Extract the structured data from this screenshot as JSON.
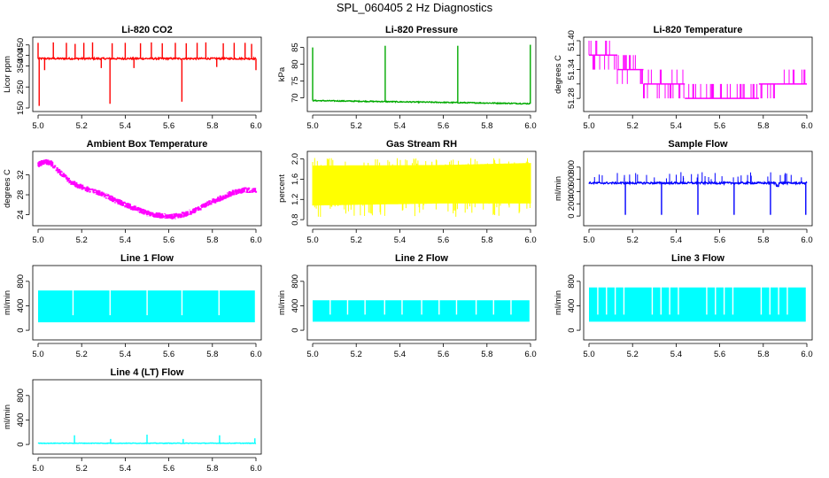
{
  "page": {
    "title": "SPL_060405  2 Hz Diagnostics"
  },
  "chart_data": [
    {
      "id": "co2",
      "type": "line",
      "title": "Li-820 CO2",
      "ylabel": "Licor ppm",
      "color": "#ff0000",
      "xlim": [
        5.0,
        6.0
      ],
      "ylim": [
        150,
        470
      ],
      "xticks": [
        "5.0",
        "5.2",
        "5.4",
        "5.6",
        "5.8",
        "6.0"
      ],
      "yticks": [
        150,
        250,
        350,
        400,
        450
      ],
      "baseline": 385,
      "noise": 4,
      "spikes": [
        {
          "x": 5.0,
          "to": 460
        },
        {
          "x": 5.005,
          "to": 160
        },
        {
          "x": 5.03,
          "to": 330
        },
        {
          "x": 5.07,
          "to": 462
        },
        {
          "x": 5.13,
          "to": 460
        },
        {
          "x": 5.17,
          "to": 455
        },
        {
          "x": 5.21,
          "to": 460
        },
        {
          "x": 5.25,
          "to": 462
        },
        {
          "x": 5.29,
          "to": 340
        },
        {
          "x": 5.33,
          "to": 170
        },
        {
          "x": 5.34,
          "to": 458
        },
        {
          "x": 5.4,
          "to": 460
        },
        {
          "x": 5.44,
          "to": 340
        },
        {
          "x": 5.47,
          "to": 458
        },
        {
          "x": 5.52,
          "to": 462
        },
        {
          "x": 5.57,
          "to": 458
        },
        {
          "x": 5.63,
          "to": 460
        },
        {
          "x": 5.66,
          "to": 180
        },
        {
          "x": 5.68,
          "to": 458
        },
        {
          "x": 5.73,
          "to": 460
        },
        {
          "x": 5.77,
          "to": 462
        },
        {
          "x": 5.82,
          "to": 345
        },
        {
          "x": 5.85,
          "to": 458
        },
        {
          "x": 5.9,
          "to": 460
        },
        {
          "x": 5.95,
          "to": 460
        },
        {
          "x": 5.98,
          "to": 455
        },
        {
          "x": 6.0,
          "to": 330
        }
      ]
    },
    {
      "id": "pressure",
      "type": "line",
      "title": "Li-820 Pressure",
      "ylabel": "kPa",
      "color": "#00aa00",
      "xlim": [
        5.0,
        6.0
      ],
      "ylim": [
        67,
        87
      ],
      "xticks": [
        "5.0",
        "5.2",
        "5.4",
        "5.6",
        "5.8",
        "6.0"
      ],
      "yticks": [
        70,
        75,
        80,
        85
      ],
      "start": 69.2,
      "end": 68.3,
      "noise": 0.15,
      "spikes": [
        {
          "x": 5.0,
          "to": 85
        },
        {
          "x": 5.333,
          "to": 85.5
        },
        {
          "x": 5.666,
          "to": 85.5
        },
        {
          "x": 5.999,
          "to": 85.8
        }
      ]
    },
    {
      "id": "licor-temp",
      "type": "step",
      "title": "Li-820 Temperature",
      "ylabel": "degrees C",
      "color": "#ff00ff",
      "xlim": [
        5.0,
        6.0
      ],
      "ylim": [
        51.26,
        51.4
      ],
      "xticks": [
        "5.0",
        "5.2",
        "5.4",
        "5.6",
        "5.8",
        "6.0"
      ],
      "yticks": [
        "51.28",
        "51.34",
        "51.40"
      ],
      "yticks_extra": [
        "51.31",
        "51.37"
      ],
      "levels": [
        {
          "from": 5.0,
          "to": 5.13,
          "y": 51.37,
          "alt": [
            51.4,
            51.34
          ]
        },
        {
          "from": 5.13,
          "to": 5.25,
          "y": 51.34,
          "alt": [
            51.37,
            51.31
          ]
        },
        {
          "from": 5.25,
          "to": 5.44,
          "y": 51.31,
          "alt": [
            51.34,
            51.28
          ]
        },
        {
          "from": 5.44,
          "to": 5.78,
          "y": 51.28,
          "alt": [
            51.31,
            51.28
          ]
        },
        {
          "from": 5.78,
          "to": 5.86,
          "y": 51.31,
          "alt": [
            51.28,
            51.31
          ]
        },
        {
          "from": 5.86,
          "to": 6.0,
          "y": 51.31,
          "alt": [
            51.34,
            51.31
          ]
        }
      ]
    },
    {
      "id": "ambient-temp",
      "type": "line",
      "title": "Ambient Box Temperature",
      "ylabel": "degrees C",
      "color": "#ff00ff",
      "xlim": [
        5.0,
        6.0
      ],
      "ylim": [
        22.5,
        36
      ],
      "xticks": [
        "5.0",
        "5.2",
        "5.4",
        "5.6",
        "5.8",
        "6.0"
      ],
      "yticks": [
        24,
        28,
        32
      ],
      "band": 0.6,
      "points": [
        [
          5.0,
          34.0
        ],
        [
          5.03,
          34.7
        ],
        [
          5.06,
          34.3
        ],
        [
          5.1,
          32.5
        ],
        [
          5.15,
          30.5
        ],
        [
          5.2,
          29.5
        ],
        [
          5.3,
          28.0
        ],
        [
          5.4,
          26.0
        ],
        [
          5.5,
          24.3
        ],
        [
          5.55,
          23.9
        ],
        [
          5.6,
          23.6
        ],
        [
          5.65,
          23.8
        ],
        [
          5.7,
          24.5
        ],
        [
          5.8,
          26.6
        ],
        [
          5.9,
          28.5
        ],
        [
          5.95,
          29.0
        ],
        [
          6.0,
          28.8
        ]
      ]
    },
    {
      "id": "gas-rh",
      "type": "band",
      "title": "Gas Stream RH",
      "ylabel": "percent",
      "color": "#ffff00",
      "xlim": [
        5.0,
        6.0
      ],
      "ylim": [
        0.75,
        2.08
      ],
      "xticks": [
        "5.0",
        "5.2",
        "5.4",
        "5.6",
        "5.8",
        "6.0"
      ],
      "yticks": [
        "0.8",
        "1.2",
        "1.6",
        "2.0"
      ],
      "upper": [
        [
          5.0,
          1.87
        ],
        [
          5.6,
          1.88
        ],
        [
          6.0,
          1.92
        ]
      ],
      "lower": [
        [
          5.0,
          1.08
        ],
        [
          5.6,
          1.12
        ],
        [
          6.0,
          1.12
        ]
      ],
      "min": 0.85,
      "max": 2.02
    },
    {
      "id": "sample-flow",
      "type": "line",
      "title": "Sample Flow",
      "ylabel": "ml/min",
      "color": "#0000ff",
      "xlim": [
        5.0,
        6.0
      ],
      "ylim": [
        -100,
        1000
      ],
      "xticks": [
        "5.0",
        "5.2",
        "5.4",
        "5.6",
        "5.8",
        "6.0"
      ],
      "yticks": [
        0,
        200,
        400,
        600,
        800
      ],
      "baseline": 540,
      "noise": 15,
      "dips": [
        5.167,
        5.333,
        5.5,
        5.666,
        5.833,
        5.995
      ],
      "dip_to": 20,
      "shift": {
        "from": 5.86,
        "to": 5.87,
        "offset": -40
      }
    },
    {
      "id": "line1-flow",
      "type": "block",
      "title": "Line 1 Flow",
      "ylabel": "ml/min",
      "color": "#00ffff",
      "xlim": [
        5.0,
        6.0
      ],
      "ylim": [
        -100,
        1000
      ],
      "xticks": [
        "5.0",
        "5.2",
        "5.4",
        "5.6",
        "5.8",
        "6.0"
      ],
      "yticks": [
        0,
        400,
        800
      ],
      "high": 650,
      "low": 130,
      "gaps": [
        5.16,
        5.33,
        5.5,
        5.66,
        5.83
      ],
      "fill_to": 5.995
    },
    {
      "id": "line2-flow",
      "type": "block",
      "title": "Line 2 Flow",
      "ylabel": "ml/min",
      "color": "#00ffff",
      "xlim": [
        5.0,
        6.0
      ],
      "ylim": [
        -100,
        1000
      ],
      "xticks": [
        "5.0",
        "5.2",
        "5.4",
        "5.6",
        "5.8",
        "6.0"
      ],
      "yticks": [
        0,
        400,
        800
      ],
      "high": 490,
      "low": 140,
      "gaps": [
        5.08,
        5.16,
        5.24,
        5.33,
        5.41,
        5.5,
        5.58,
        5.66,
        5.75,
        5.83,
        5.91
      ],
      "fill_to": 5.995
    },
    {
      "id": "line3-flow",
      "type": "block",
      "title": "Line 3 Flow",
      "ylabel": "ml/min",
      "color": "#00ffff",
      "xlim": [
        5.0,
        6.0
      ],
      "ylim": [
        -100,
        1000
      ],
      "xticks": [
        "5.0",
        "5.2",
        "5.4",
        "5.6",
        "5.8",
        "6.0"
      ],
      "yticks": [
        0,
        400,
        800
      ],
      "high": 700,
      "low": 140,
      "gaps": [
        5.04,
        5.08,
        5.12,
        5.16,
        5.29,
        5.33,
        5.37,
        5.41,
        5.54,
        5.58,
        5.62,
        5.66,
        5.79,
        5.83,
        5.87,
        5.91
      ],
      "fill_to": 5.995
    },
    {
      "id": "line4-flow",
      "type": "line",
      "title": "Line 4 (LT) Flow",
      "ylabel": "ml/min",
      "color": "#00ffff",
      "xlim": [
        5.0,
        6.0
      ],
      "ylim": [
        -100,
        1000
      ],
      "xticks": [
        "5.0",
        "5.2",
        "5.4",
        "5.6",
        "5.8",
        "6.0"
      ],
      "yticks": [
        0,
        400,
        800
      ],
      "baseline": 20,
      "noise": 4,
      "spikes": [
        {
          "x": 5.167,
          "to": 150
        },
        {
          "x": 5.333,
          "to": 90
        },
        {
          "x": 5.5,
          "to": 160
        },
        {
          "x": 5.666,
          "to": 90
        },
        {
          "x": 5.833,
          "to": 150
        },
        {
          "x": 5.995,
          "to": 100
        }
      ]
    }
  ]
}
